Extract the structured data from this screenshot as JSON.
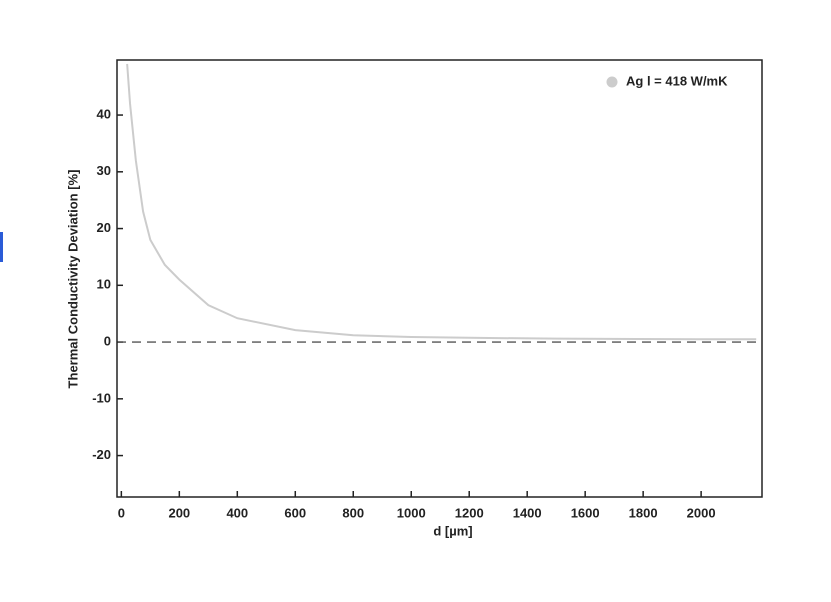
{
  "chart_data": {
    "type": "line",
    "xlabel": "d [µm]",
    "ylabel": "Thermal Conductivity Deviation [%]",
    "x": [
      20,
      30,
      50,
      75,
      100,
      150,
      200,
      300,
      400,
      600,
      800,
      1000,
      1200,
      1500,
      2000,
      2190
    ],
    "series": [
      {
        "name": "Ag  l = 418 W/mK",
        "color": "#cccccc",
        "values": [
          49,
          42,
          32,
          23,
          18,
          13.6,
          11,
          6.5,
          4.2,
          2.1,
          1.2,
          0.9,
          0.75,
          0.6,
          0.5,
          0.5
        ]
      }
    ],
    "xlim": [
      -15,
      2210
    ],
    "ylim": [
      -27.3,
      49.7
    ],
    "xticks": [
      0,
      200,
      400,
      600,
      800,
      1000,
      1200,
      1400,
      1600,
      1800,
      2000
    ],
    "yticks": [
      -20,
      -10,
      0,
      10,
      20,
      30,
      40
    ],
    "hline": 0,
    "legend": "upper right",
    "grid": false
  }
}
